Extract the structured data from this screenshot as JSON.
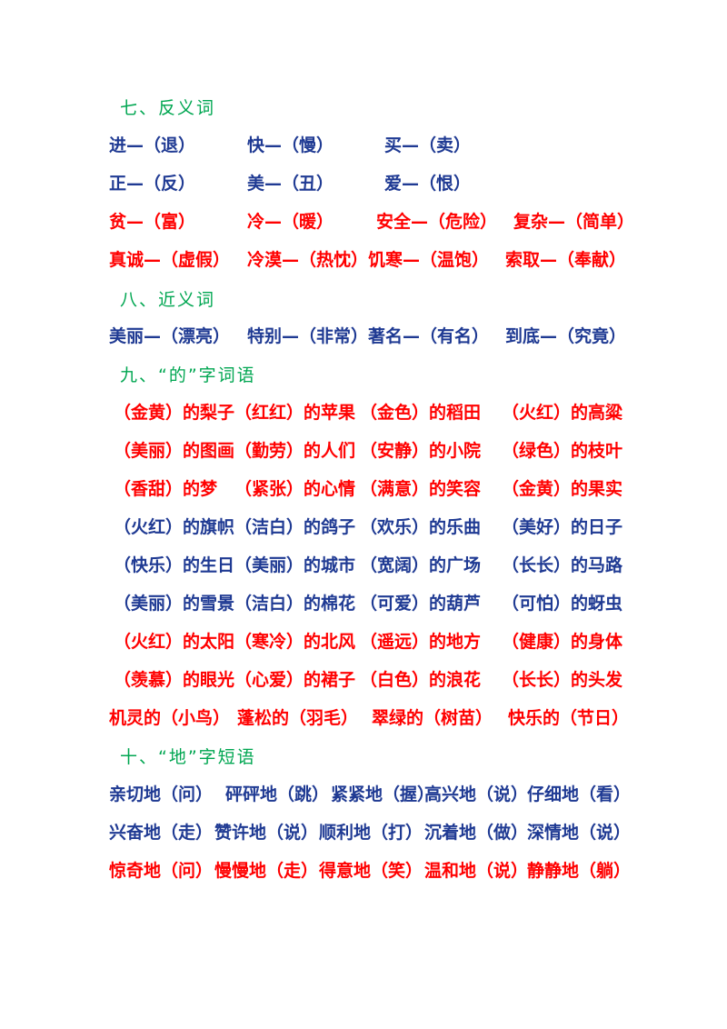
{
  "sections": [
    {
      "heading": "七、反义词",
      "rows": [
        {
          "color": "#1f3a93",
          "items": [
            "进—（退）",
            "快—（慢）",
            "买—（卖）"
          ]
        },
        {
          "color": "#1f3a93",
          "items": [
            "正—（反）",
            "美—（丑）",
            "爱—（恨）"
          ]
        },
        {
          "color": "#ff0000",
          "items": [
            "贫—（富）",
            "冷—（暖）",
            "安全—（危险）",
            "复杂—（简单）"
          ]
        },
        {
          "color": "#ff0000",
          "items": [
            "真诚—（虚假）",
            "冷漠—（热忱）",
            "饥寒—（温饱）",
            "索取—（奉献）"
          ]
        }
      ]
    },
    {
      "heading": "八、近义词",
      "rows": [
        {
          "color": "#1f3a93",
          "items": [
            "美丽—（漂亮）",
            "特别—（非常）",
            "著名—（有名）",
            "到底—（究竟）"
          ]
        }
      ]
    },
    {
      "heading": "九、“的”字词语",
      "rows": [
        {
          "color": "#ff0000",
          "items": [
            "（金黄）的梨子",
            "（红红）的苹果",
            "（金色）的稻田",
            "（火红）的高粱"
          ]
        },
        {
          "color": "#ff0000",
          "items": [
            "（美丽）的图画",
            "（勤劳）的人们",
            "（安静）的小院",
            "（绿色）的枝叶"
          ]
        },
        {
          "color": "#ff0000",
          "items": [
            "（香甜）的梦",
            "（紧张）的心情",
            "（满意）的笑容",
            "（金黄）的果实"
          ]
        },
        {
          "color": "#1f3a93",
          "items": [
            "（火红）的旗帜",
            "（洁白）的鸽子",
            "（欢乐）的乐曲",
            "（美好）的日子"
          ]
        },
        {
          "color": "#1f3a93",
          "items": [
            "（快乐）的生日",
            "（美丽）的城市",
            "（宽阔）的广场",
            "（长长）的马路"
          ]
        },
        {
          "color": "#1f3a93",
          "items": [
            "（美丽）的雪景",
            "（洁白）的棉花",
            "（可爱）的葫芦",
            "（可怕）的蚜虫"
          ]
        },
        {
          "color": "#ff0000",
          "items": [
            "（火红）的太阳",
            "（寒冷）的北风",
            "（遥远）的地方",
            "（健康）的身体"
          ]
        },
        {
          "color": "#ff0000",
          "items": [
            "（羡慕）的眼光",
            "（心爱）的裙子",
            "（白色）的浪花",
            "（长长）的头发"
          ]
        },
        {
          "color": "#ff0000",
          "items": [
            "机灵的（小鸟）",
            "蓬松的（羽毛）",
            "翠绿的（树苗）",
            "快乐的（节日）"
          ]
        }
      ]
    },
    {
      "heading": "十、“地”字短语",
      "rows": [
        {
          "color": "#1f3a93",
          "items": [
            "亲切地（问）",
            "砰砰地（跳）",
            "紧紧地（握）",
            "高兴地（说）",
            "仔细地（看）"
          ]
        },
        {
          "color": "#1f3a93",
          "items": [
            "兴奋地（走）",
            "赞许地（说）",
            "顺利地（打）",
            "沉着地（做）",
            "深情地（说）"
          ]
        },
        {
          "color": "#ff0000",
          "items": [
            "惊奇地（问）",
            "慢慢地（走）",
            "得意地（笑）",
            "温和地（说）",
            "静静地（躺）"
          ]
        }
      ]
    }
  ]
}
